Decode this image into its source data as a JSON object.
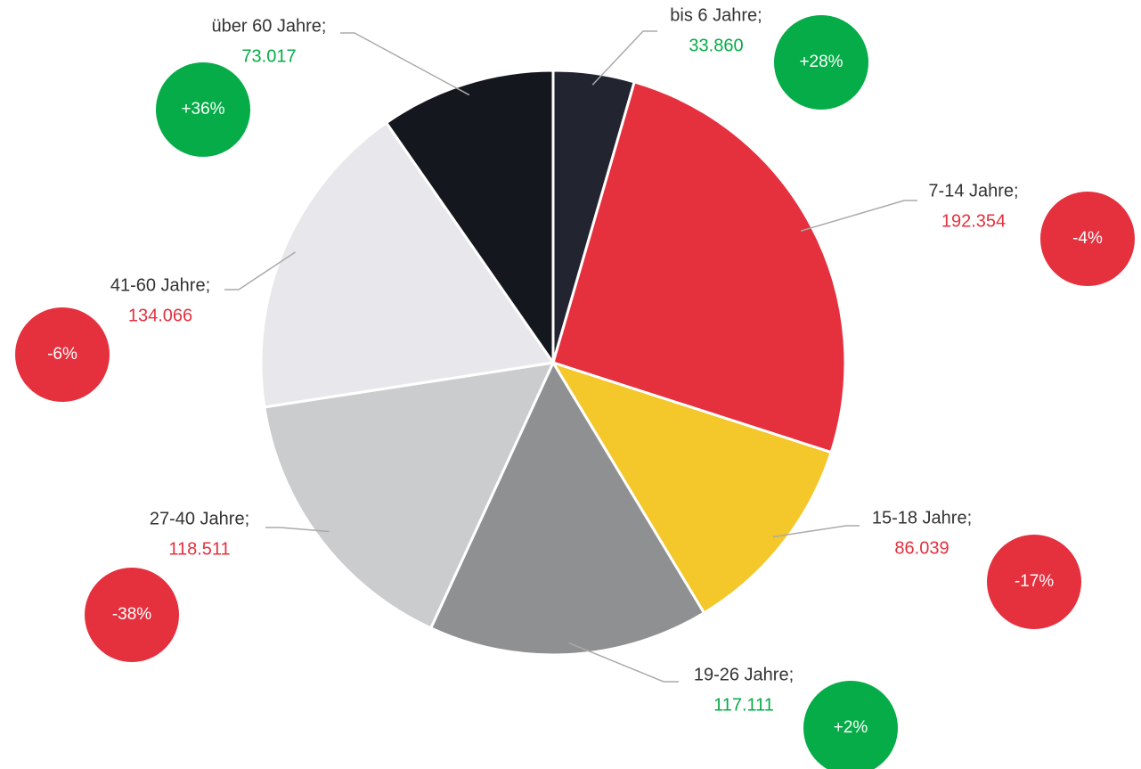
{
  "chart_data": {
    "type": "pie",
    "categories": [
      "bis 6 Jahre;",
      "7-14 Jahre;",
      "15-18 Jahre;",
      "19-26 Jahre;",
      "27-40 Jahre;",
      "41-60 Jahre;",
      "über 60 Jahre;"
    ],
    "values": [
      33860,
      192354,
      86039,
      117111,
      118511,
      134066,
      73017
    ],
    "value_labels": [
      "33.860",
      "192.354",
      "86.039",
      "117.111",
      "118.511",
      "134.066",
      "73.017"
    ],
    "colors": [
      "#22252f",
      "#e5303e",
      "#f4c72a",
      "#8f9091",
      "#cbcccd",
      "#e8e8ec",
      "#15171e"
    ],
    "changes": [
      28,
      -4,
      -17,
      2,
      -38,
      -6,
      36
    ],
    "change_labels": [
      "+28%",
      "-4%",
      "-17%",
      "+2%",
      "-38%",
      "-6%",
      "+36%"
    ],
    "positive_color": "#05ac47",
    "negative_color": "#e5303e"
  }
}
